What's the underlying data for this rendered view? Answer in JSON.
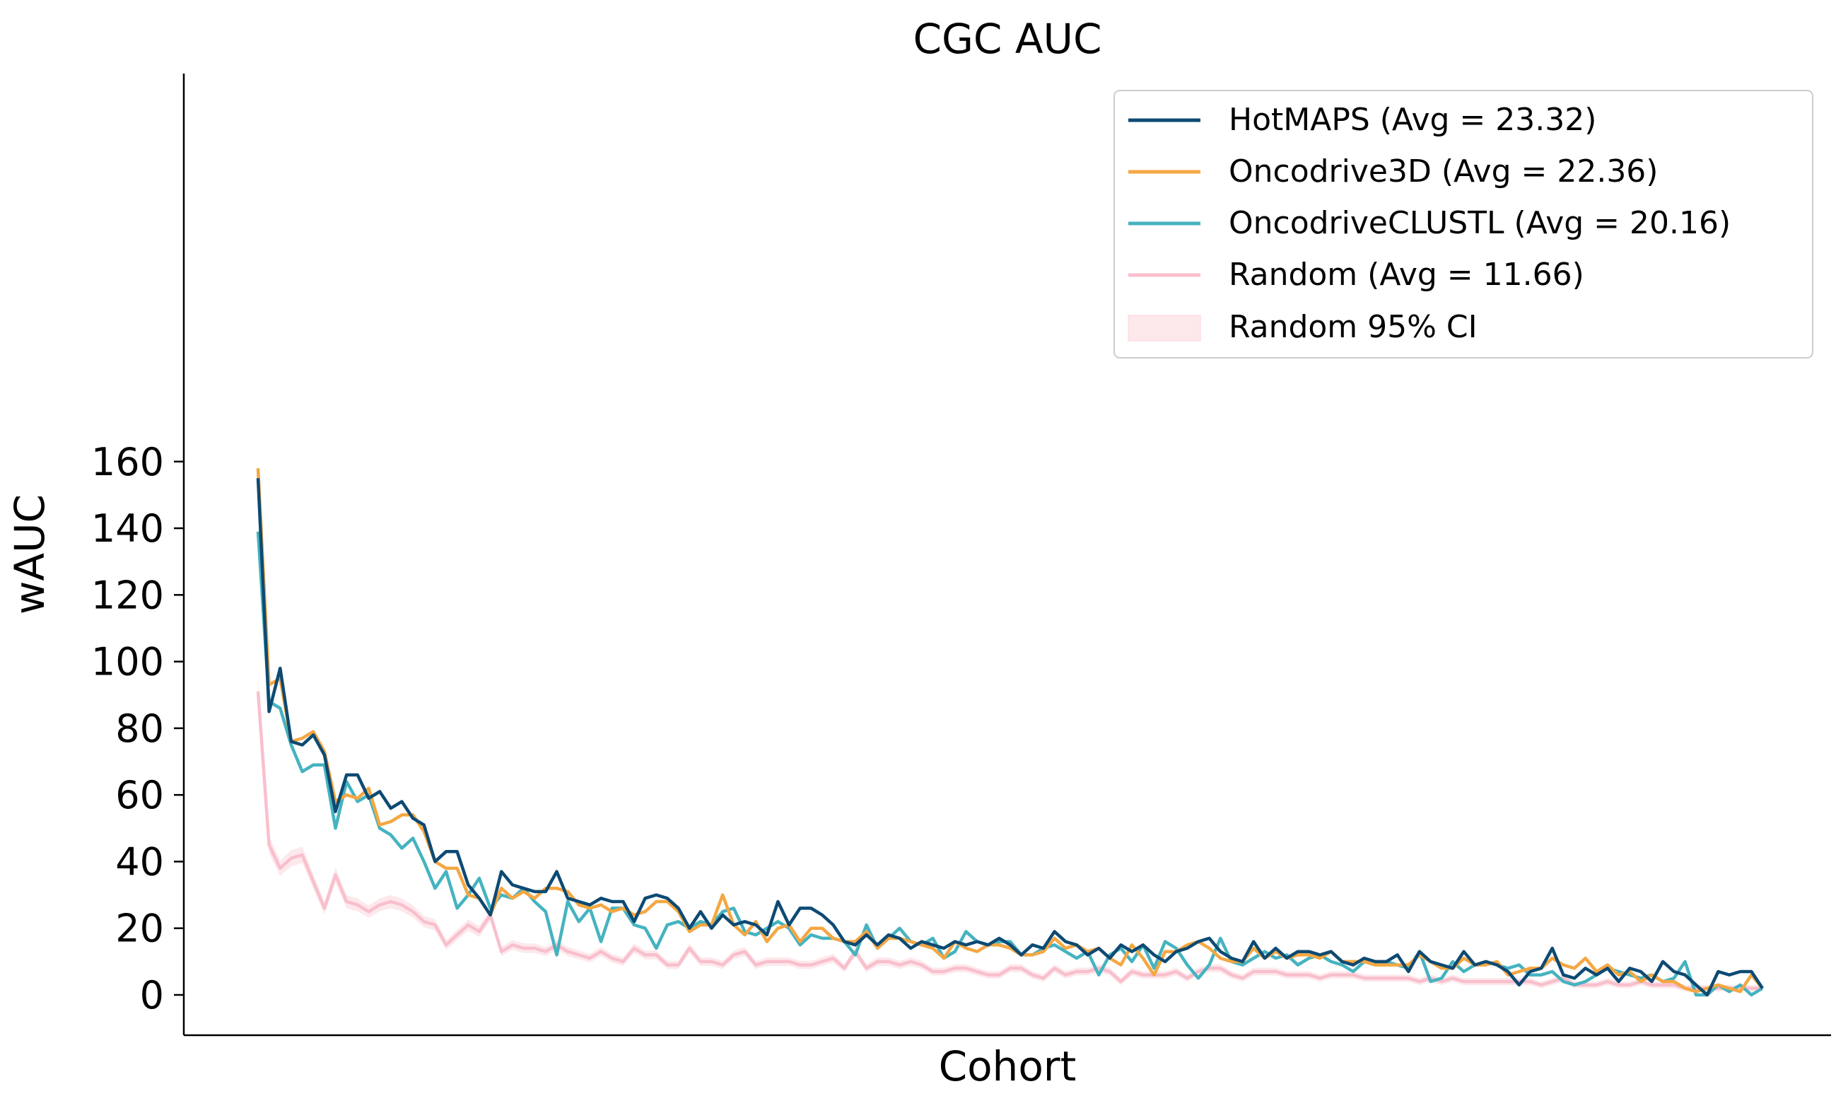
{
  "chart_data": {
    "type": "line",
    "title": "CGC AUC",
    "xlabel": "Cohort",
    "ylabel": "wAUC",
    "ylim": [
      -7,
      165
    ],
    "yticks": [
      0,
      20,
      40,
      60,
      80,
      100,
      120,
      140,
      160
    ],
    "grid": false,
    "legend_position": "top-right",
    "series": [
      {
        "name": "HotMAPS (Avg = 23.32)",
        "color": "#0d4a73",
        "values": [
          155,
          85,
          98,
          76,
          75,
          78,
          72,
          55,
          66,
          66,
          59,
          61,
          56,
          58,
          53,
          51,
          40,
          43,
          43,
          33,
          29,
          24,
          37,
          33,
          32,
          31,
          31,
          37,
          29,
          28,
          27,
          29,
          28,
          28,
          22,
          29,
          30,
          29,
          26,
          20,
          25,
          20,
          24,
          21,
          22,
          21,
          18,
          28,
          21,
          26,
          26,
          24,
          21,
          16,
          15,
          18,
          15,
          18,
          17,
          14,
          16,
          15,
          14,
          16,
          15,
          16,
          15,
          17,
          15,
          12,
          15,
          14,
          19,
          16,
          15,
          12,
          14,
          11,
          15,
          13,
          15,
          12,
          10,
          13,
          14,
          16,
          17,
          13,
          11,
          10,
          16,
          11,
          14,
          11,
          13,
          13,
          12,
          13,
          10,
          9,
          11,
          10,
          10,
          12,
          7,
          13,
          10,
          9,
          8,
          13,
          9,
          10,
          9,
          7,
          3,
          7,
          8,
          14,
          6,
          5,
          8,
          6,
          8,
          4,
          8,
          7,
          4,
          10,
          7,
          6,
          3,
          0,
          7,
          6,
          7,
          7,
          2
        ]
      },
      {
        "name": "Oncodrive3D (Avg = 22.36)",
        "color": "#f5a742",
        "values": [
          158,
          93,
          95,
          76,
          77,
          79,
          73,
          58,
          60,
          59,
          62,
          51,
          52,
          54,
          54,
          49,
          40,
          38,
          38,
          30,
          29,
          24,
          32,
          29,
          31,
          29,
          32,
          32,
          31,
          27,
          26,
          27,
          25,
          26,
          24,
          25,
          28,
          28,
          25,
          19,
          21,
          21,
          30,
          21,
          18,
          22,
          16,
          20,
          21,
          16,
          20,
          20,
          17,
          16,
          16,
          19,
          14,
          17,
          17,
          16,
          15,
          14,
          11,
          16,
          14,
          13,
          15,
          15,
          14,
          12,
          12,
          13,
          17,
          14,
          15,
          13,
          14,
          11,
          9,
          15,
          11,
          6,
          13,
          13,
          15,
          16,
          14,
          11,
          10,
          10,
          14,
          11,
          13,
          11,
          12,
          12,
          11,
          13,
          10,
          10,
          10,
          9,
          9,
          9,
          9,
          12,
          10,
          8,
          8,
          11,
          9,
          9,
          10,
          6,
          7,
          8,
          8,
          11,
          9,
          8,
          11,
          7,
          9,
          6,
          7,
          4,
          6,
          4,
          4,
          2,
          1,
          2,
          3,
          2,
          1,
          6,
          2
        ]
      },
      {
        "name": "OncodriveCLUSTL (Avg = 20.16)",
        "color": "#45b3c0",
        "values": [
          139,
          88,
          86,
          75,
          67,
          69,
          69,
          50,
          64,
          58,
          60,
          50,
          48,
          44,
          47,
          40,
          32,
          37,
          26,
          30,
          35,
          26,
          30,
          29,
          32,
          28,
          25,
          12,
          28,
          22,
          26,
          16,
          26,
          26,
          21,
          20,
          14,
          21,
          22,
          20,
          22,
          21,
          25,
          26,
          19,
          18,
          20,
          22,
          20,
          15,
          18,
          17,
          17,
          16,
          12,
          21,
          14,
          17,
          20,
          16,
          15,
          17,
          11,
          13,
          19,
          16,
          15,
          16,
          16,
          12,
          12,
          14,
          15,
          13,
          11,
          13,
          6,
          12,
          14,
          10,
          15,
          8,
          16,
          14,
          9,
          5,
          9,
          17,
          10,
          9,
          11,
          13,
          11,
          12,
          9,
          11,
          12,
          10,
          9,
          7,
          10,
          9,
          10,
          9,
          8,
          13,
          4,
          5,
          10,
          7,
          9,
          10,
          9,
          8,
          9,
          6,
          6,
          7,
          4,
          3,
          4,
          6,
          8,
          7,
          6,
          5,
          6,
          4,
          5,
          10,
          0,
          0,
          3,
          1,
          3,
          0,
          2
        ]
      },
      {
        "name": "Random (Avg = 11.66)",
        "color": "#f9bfcc",
        "values": [
          91,
          45,
          38,
          41,
          42,
          34,
          26,
          36,
          28,
          27,
          25,
          27,
          28,
          27,
          25,
          22,
          21,
          15,
          18,
          21,
          19,
          24,
          13,
          15,
          14,
          14,
          13,
          15,
          13,
          12,
          11,
          13,
          11,
          10,
          14,
          12,
          12,
          9,
          9,
          14,
          10,
          10,
          9,
          12,
          13,
          9,
          10,
          10,
          10,
          9,
          9,
          10,
          11,
          8,
          13,
          8,
          10,
          10,
          9,
          10,
          9,
          7,
          7,
          8,
          8,
          7,
          6,
          6,
          8,
          8,
          6,
          5,
          8,
          6,
          7,
          7,
          8,
          7,
          4,
          7,
          6,
          6,
          6,
          7,
          5,
          7,
          8,
          8,
          6,
          5,
          7,
          7,
          7,
          6,
          6,
          6,
          5,
          6,
          6,
          6,
          5,
          5,
          5,
          5,
          5,
          4,
          5,
          4,
          5,
          4,
          4,
          4,
          4,
          4,
          4,
          4,
          3,
          4,
          5,
          3,
          3,
          3,
          4,
          3,
          3,
          4,
          3,
          3,
          3,
          2,
          2,
          2,
          2,
          2,
          2,
          2,
          2
        ]
      }
    ],
    "ci_band": {
      "name": "Random 95% CI",
      "color": "#fde8ec",
      "halfwidth": 1.5
    }
  }
}
